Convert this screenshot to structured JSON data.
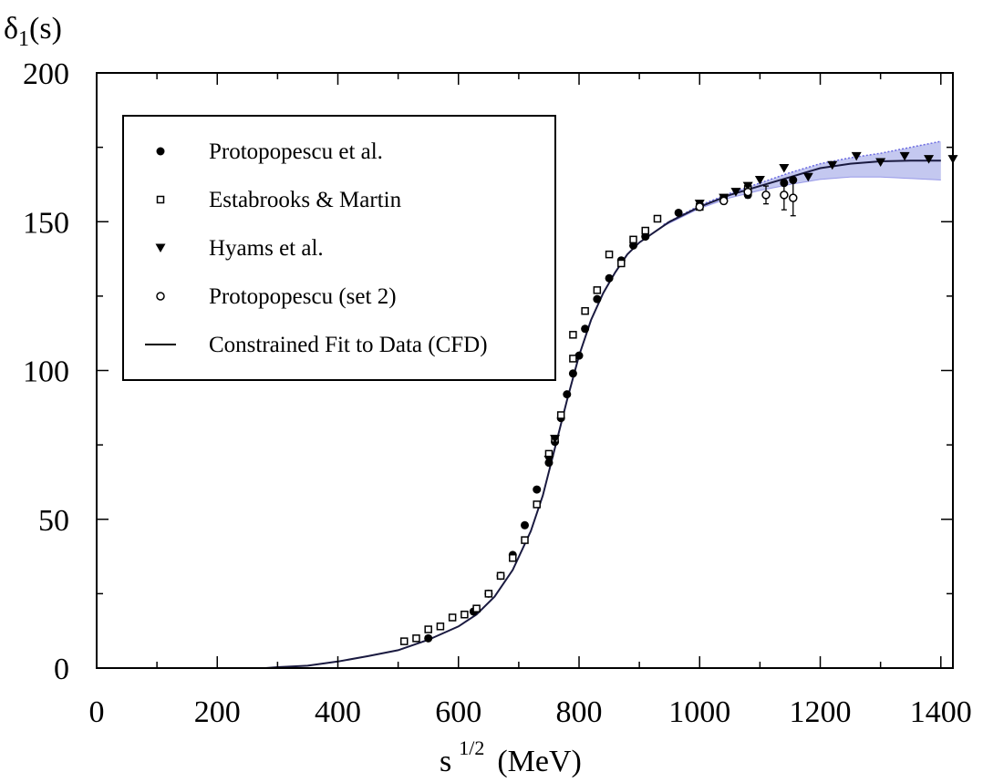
{
  "chart_data": {
    "type": "scatter",
    "title": "",
    "ylabel_main": "δ",
    "ylabel_sub": "1",
    "ylabel_tail": "(s)",
    "xlabel_main": "s",
    "xlabel_sup": "1/2",
    "xlabel_tail": "(MeV)",
    "xlim": [
      0,
      1420
    ],
    "ylim": [
      0,
      200
    ],
    "xticks": [
      0,
      200,
      400,
      600,
      800,
      1000,
      1200,
      1400
    ],
    "yticks": [
      0,
      50,
      100,
      150,
      200
    ],
    "legend_position": "top-left",
    "grid": false,
    "series": [
      {
        "name": "Protopopescu et al.",
        "marker": "filled-circle",
        "points": [
          [
            550,
            10
          ],
          [
            625,
            19
          ],
          [
            650,
            25
          ],
          [
            670,
            31
          ],
          [
            690,
            38
          ],
          [
            710,
            48
          ],
          [
            730,
            60
          ],
          [
            750,
            69
          ],
          [
            760,
            76
          ],
          [
            770,
            84
          ],
          [
            780,
            92
          ],
          [
            790,
            99
          ],
          [
            800,
            105
          ],
          [
            810,
            114
          ],
          [
            830,
            124
          ],
          [
            850,
            131
          ],
          [
            870,
            137
          ],
          [
            890,
            142
          ],
          [
            910,
            145
          ],
          [
            965,
            153
          ],
          [
            1040,
            157
          ],
          [
            1080,
            159
          ],
          [
            1140,
            163
          ],
          [
            1155,
            164
          ]
        ]
      },
      {
        "name": "Estabrooks & Martin",
        "marker": "open-square",
        "points": [
          [
            510,
            9
          ],
          [
            530,
            10
          ],
          [
            550,
            13
          ],
          [
            570,
            14
          ],
          [
            590,
            17
          ],
          [
            610,
            18
          ],
          [
            630,
            20
          ],
          [
            650,
            25
          ],
          [
            670,
            31
          ],
          [
            690,
            37
          ],
          [
            710,
            43
          ],
          [
            730,
            55
          ],
          [
            750,
            72
          ],
          [
            760,
            77
          ],
          [
            770,
            85
          ],
          [
            790,
            104
          ],
          [
            790,
            112
          ],
          [
            810,
            120
          ],
          [
            830,
            127
          ],
          [
            850,
            139
          ],
          [
            870,
            136
          ],
          [
            890,
            144
          ],
          [
            910,
            147
          ],
          [
            930,
            151
          ],
          [
            1000,
            155
          ],
          [
            1040,
            158
          ],
          [
            1080,
            161
          ]
        ]
      },
      {
        "name": "Hyams et al.",
        "marker": "filled-triangle-down",
        "points": [
          [
            750,
            70
          ],
          [
            760,
            77
          ],
          [
            1000,
            156
          ],
          [
            1040,
            158
          ],
          [
            1060,
            160
          ],
          [
            1080,
            162
          ],
          [
            1100,
            164
          ],
          [
            1140,
            168
          ],
          [
            1180,
            165
          ],
          [
            1220,
            169
          ],
          [
            1260,
            172
          ],
          [
            1300,
            170
          ],
          [
            1340,
            172
          ],
          [
            1380,
            171
          ],
          [
            1420,
            171
          ]
        ]
      },
      {
        "name": "Protopopescu (set 2)",
        "marker": "open-circle",
        "points": [
          [
            1000,
            155
          ],
          [
            1040,
            157
          ],
          [
            1080,
            160
          ],
          [
            1110,
            159
          ],
          [
            1140,
            159
          ],
          [
            1155,
            158
          ]
        ],
        "errors": [
          1,
          1,
          2,
          3,
          5,
          6
        ]
      },
      {
        "name": "Constrained Fit to Data (CFD)",
        "marker": "line",
        "points": [
          [
            280,
            0
          ],
          [
            300,
            0.3
          ],
          [
            350,
            0.8
          ],
          [
            400,
            2.2
          ],
          [
            450,
            4
          ],
          [
            500,
            6
          ],
          [
            550,
            9.5
          ],
          [
            600,
            14
          ],
          [
            630,
            18
          ],
          [
            660,
            24
          ],
          [
            690,
            33
          ],
          [
            720,
            46
          ],
          [
            740,
            58
          ],
          [
            760,
            74
          ],
          [
            780,
            90
          ],
          [
            800,
            105
          ],
          [
            820,
            117
          ],
          [
            840,
            126
          ],
          [
            860,
            133
          ],
          [
            880,
            139
          ],
          [
            900,
            143
          ],
          [
            950,
            150
          ],
          [
            1000,
            155
          ],
          [
            1050,
            159
          ],
          [
            1100,
            162
          ],
          [
            1150,
            165
          ],
          [
            1200,
            168
          ],
          [
            1250,
            169.5
          ],
          [
            1300,
            170.3
          ],
          [
            1350,
            170.5
          ],
          [
            1400,
            170.5
          ]
        ]
      }
    ],
    "band": {
      "upper": [
        [
          940,
          149
        ],
        [
          1000,
          155.5
        ],
        [
          1050,
          159.5
        ],
        [
          1100,
          163
        ],
        [
          1150,
          166.5
        ],
        [
          1200,
          169.5
        ],
        [
          1250,
          171.5
        ],
        [
          1300,
          173
        ],
        [
          1350,
          175
        ],
        [
          1400,
          177
        ]
      ],
      "lower": [
        [
          940,
          148.5
        ],
        [
          1000,
          154.5
        ],
        [
          1050,
          158
        ],
        [
          1100,
          160.5
        ],
        [
          1150,
          162.5
        ],
        [
          1200,
          164.2
        ],
        [
          1250,
          165
        ],
        [
          1300,
          165
        ],
        [
          1350,
          164.5
        ],
        [
          1400,
          164
        ]
      ]
    },
    "colors": {
      "markers": "#000000",
      "fit_line": "#1a1a40",
      "band_fill": "#c4c8f0",
      "band_edge": "#6a6ae0"
    }
  }
}
